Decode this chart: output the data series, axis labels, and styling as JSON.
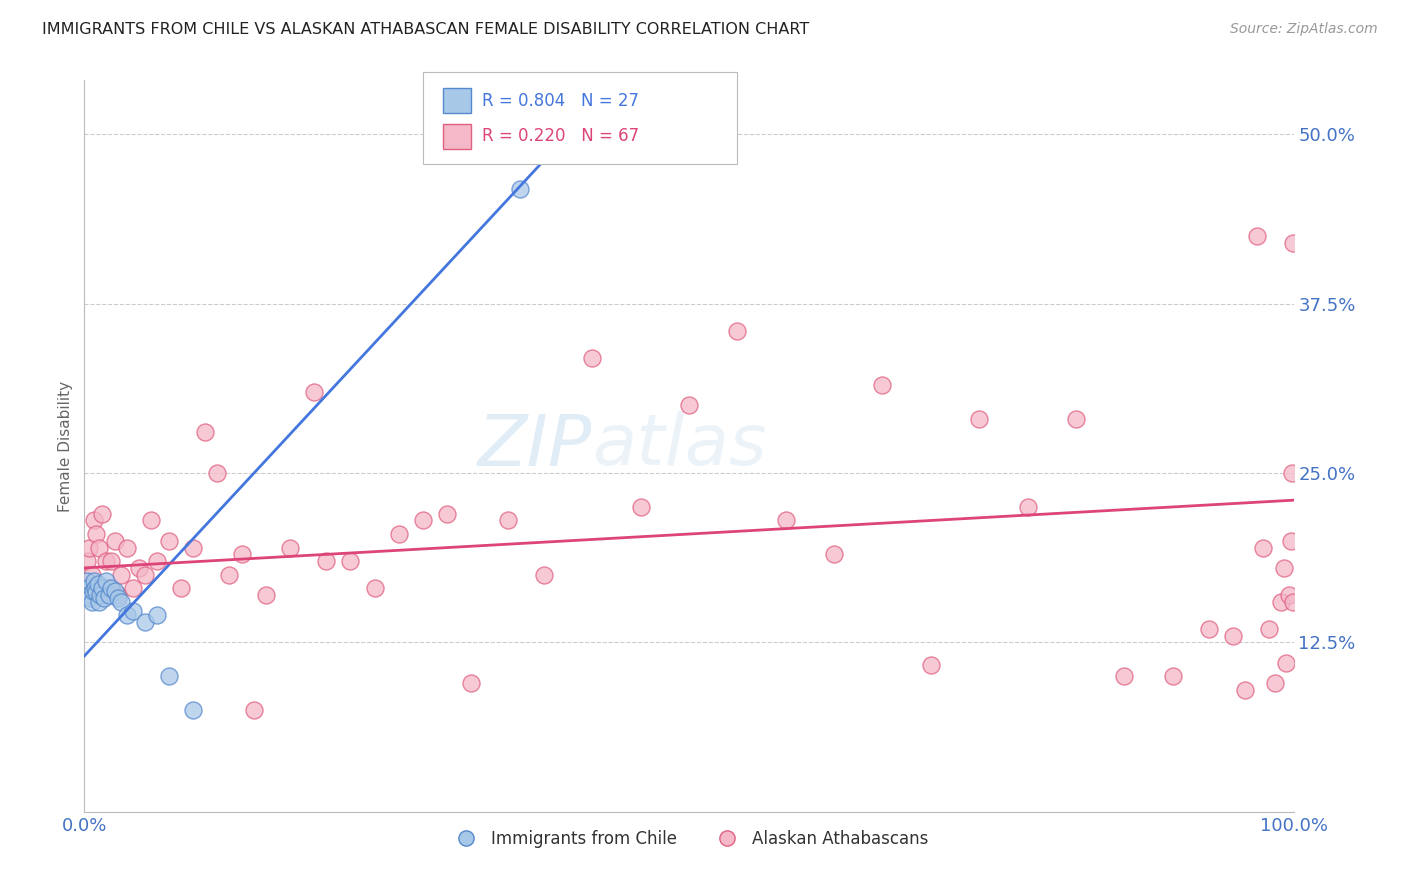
{
  "title": "IMMIGRANTS FROM CHILE VS ALASKAN ATHABASCAN FEMALE DISABILITY CORRELATION CHART",
  "source": "Source: ZipAtlas.com",
  "ylabel": "Female Disability",
  "xlim": [
    0.0,
    1.0
  ],
  "ylim": [
    0.0,
    0.54
  ],
  "xticks": [
    0.0,
    0.25,
    0.5,
    0.75,
    1.0
  ],
  "xticklabels": [
    "0.0%",
    "",
    "",
    "",
    "100.0%"
  ],
  "ytick_vals": [
    0.125,
    0.25,
    0.375,
    0.5
  ],
  "ytick_labels": [
    "12.5%",
    "25.0%",
    "37.5%",
    "50.0%"
  ],
  "blue_color": "#a8c8e8",
  "pink_color": "#f4b8c8",
  "blue_edge_color": "#5588cc",
  "pink_edge_color": "#e06080",
  "blue_line_color": "#4477dd",
  "pink_line_color": "#dd4477",
  "title_color": "#222222",
  "source_color": "#999999",
  "axis_label_color": "#666666",
  "tick_color": "#4472c4",
  "watermark_color": "#ddeeff",
  "blue_scatter_x": [
    0.002,
    0.003,
    0.004,
    0.005,
    0.006,
    0.007,
    0.008,
    0.009,
    0.01,
    0.011,
    0.012,
    0.013,
    0.015,
    0.016,
    0.018,
    0.02,
    0.022,
    0.025,
    0.028,
    0.03,
    0.035,
    0.04,
    0.05,
    0.06,
    0.07,
    0.09,
    0.36
  ],
  "blue_scatter_y": [
    0.17,
    0.165,
    0.16,
    0.158,
    0.155,
    0.163,
    0.17,
    0.165,
    0.162,
    0.168,
    0.155,
    0.16,
    0.165,
    0.158,
    0.17,
    0.16,
    0.165,
    0.163,
    0.158,
    0.155,
    0.145,
    0.148,
    0.14,
    0.145,
    0.1,
    0.075,
    0.46
  ],
  "pink_scatter_x": [
    0.002,
    0.004,
    0.006,
    0.008,
    0.01,
    0.012,
    0.015,
    0.018,
    0.02,
    0.022,
    0.025,
    0.028,
    0.03,
    0.035,
    0.04,
    0.045,
    0.05,
    0.055,
    0.06,
    0.07,
    0.08,
    0.09,
    0.1,
    0.11,
    0.12,
    0.13,
    0.14,
    0.15,
    0.17,
    0.19,
    0.2,
    0.22,
    0.24,
    0.26,
    0.28,
    0.3,
    0.32,
    0.35,
    0.38,
    0.42,
    0.46,
    0.5,
    0.54,
    0.58,
    0.62,
    0.66,
    0.7,
    0.74,
    0.78,
    0.82,
    0.86,
    0.9,
    0.93,
    0.95,
    0.96,
    0.97,
    0.975,
    0.98,
    0.985,
    0.99,
    0.992,
    0.994,
    0.996,
    0.998,
    0.999,
    0.9995,
    0.9998
  ],
  "pink_scatter_y": [
    0.185,
    0.195,
    0.175,
    0.215,
    0.205,
    0.195,
    0.22,
    0.185,
    0.165,
    0.185,
    0.2,
    0.16,
    0.175,
    0.195,
    0.165,
    0.18,
    0.175,
    0.215,
    0.185,
    0.2,
    0.165,
    0.195,
    0.28,
    0.25,
    0.175,
    0.19,
    0.075,
    0.16,
    0.195,
    0.31,
    0.185,
    0.185,
    0.165,
    0.205,
    0.215,
    0.22,
    0.095,
    0.215,
    0.175,
    0.335,
    0.225,
    0.3,
    0.355,
    0.215,
    0.19,
    0.315,
    0.108,
    0.29,
    0.225,
    0.29,
    0.1,
    0.1,
    0.135,
    0.13,
    0.09,
    0.425,
    0.195,
    0.135,
    0.095,
    0.155,
    0.18,
    0.11,
    0.16,
    0.2,
    0.25,
    0.155,
    0.42
  ],
  "blue_line_x0": 0.0,
  "blue_line_y0": 0.115,
  "blue_line_x1": 0.4,
  "blue_line_y1": 0.5,
  "pink_line_x0": 0.0,
  "pink_line_y0": 0.18,
  "pink_line_x1": 1.0,
  "pink_line_y1": 0.23
}
